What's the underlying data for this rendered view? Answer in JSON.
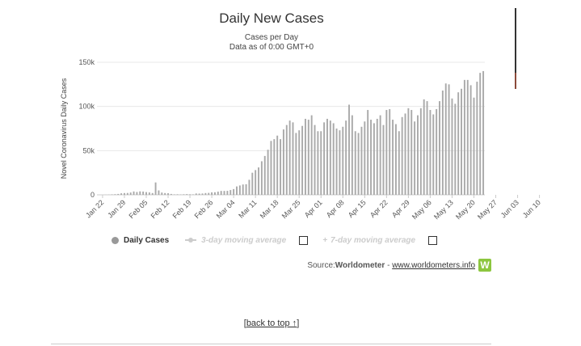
{
  "title": "Daily New Cases",
  "subtitle_line1": "Cases per Day",
  "subtitle_line2": "Data as of 0:00 GMT+0",
  "legend": {
    "daily": "Daily Cases",
    "ma3": "3-day moving average",
    "ma7": "7-day moving average"
  },
  "source": {
    "prefix": "Source: ",
    "name": "Worldometer",
    "separator": " - ",
    "link": "www.worldometers.info",
    "logo_letter": "W"
  },
  "back_to_top": "back to top ↑",
  "chart_data": {
    "type": "bar",
    "ylabel": "Novel Coronavirus Daily Cases",
    "ylim": [
      0,
      150000
    ],
    "y_ticks": [
      0,
      50000,
      100000,
      150000
    ],
    "y_tick_labels": [
      "0",
      "50k",
      "100k",
      "150k"
    ],
    "x_tick_labels": [
      "Jan 22",
      "Jan 29",
      "Feb 05",
      "Feb 12",
      "Feb 19",
      "Feb 26",
      "Mar 04",
      "Mar 11",
      "Mar 18",
      "Mar 25",
      "Apr 01",
      "Apr 08",
      "Apr 15",
      "Apr 22",
      "Apr 29",
      "May 06",
      "May 13",
      "May 20",
      "May 27",
      "Jun 03",
      "Jun 10"
    ],
    "x_tick_every_days": 7,
    "bar_color": "#aaaaaa",
    "values": [
      0,
      100,
      200,
      500,
      700,
      1000,
      1700,
      2000,
      2100,
      2600,
      3800,
      3200,
      3900,
      3700,
      3100,
      2700,
      2000,
      14000,
      5000,
      2600,
      2000,
      1800,
      1000,
      500,
      600,
      400,
      600,
      800,
      600,
      500,
      1500,
      1400,
      1500,
      2000,
      2200,
      2800,
      2900,
      3600,
      4400,
      4400,
      4500,
      5400,
      6500,
      9500,
      10600,
      11700,
      12000,
      17000,
      25000,
      28000,
      31000,
      38000,
      44000,
      51000,
      61000,
      63000,
      67000,
      63000,
      74000,
      79000,
      84000,
      82000,
      70000,
      73000,
      78000,
      86000,
      85000,
      90000,
      79000,
      72000,
      72000,
      82000,
      86000,
      84000,
      81000,
      75000,
      73000,
      77000,
      84000,
      102000,
      90000,
      72000,
      70000,
      77000,
      83000,
      96000,
      85000,
      81000,
      86000,
      90000,
      79000,
      96000,
      97000,
      85000,
      80000,
      72000,
      88000,
      92000,
      98000,
      96000,
      83000,
      90000,
      98000,
      108000,
      106000,
      96000,
      91000,
      97000,
      106000,
      118000,
      126000,
      125000,
      109000,
      103000,
      116000,
      120000,
      130000,
      130000,
      124000,
      110000,
      128000,
      138000,
      140000
    ]
  }
}
